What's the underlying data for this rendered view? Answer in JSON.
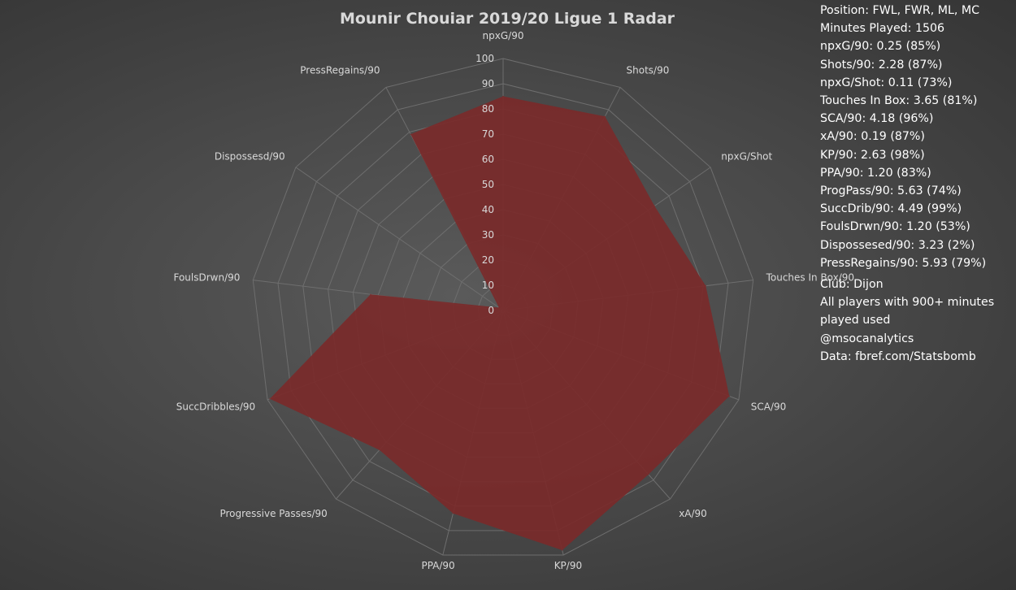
{
  "chart_data": {
    "type": "radar",
    "title": "Mounir Chouiar 2019/20 Ligue 1 Radar",
    "axes": [
      "npxG/90",
      "Shots/90",
      "npxG/Shot",
      "Touches In Box/90",
      "SCA/90",
      "xA/90",
      "KP/90",
      "PPA/90",
      "Progressive Passes/90",
      "SuccDribbles/90",
      "FoulsDrwn/90",
      "Dispossesd/90",
      "PressRegains/90"
    ],
    "series": [
      {
        "values": [
          85,
          87,
          73,
          81,
          96,
          87,
          98,
          83,
          74,
          99,
          53,
          2,
          79
        ],
        "color": "#7a2a2a"
      }
    ],
    "r_range": [
      0,
      100
    ],
    "r_ticks": [
      0,
      10,
      20,
      30,
      40,
      50,
      60,
      70,
      80,
      90,
      100
    ],
    "grid": true,
    "legend": "none"
  },
  "info": {
    "stats": [
      "Position: FWL, FWR, ML, MC",
      "Minutes Played: 1506",
      "npxG/90: 0.25 (85%)",
      "Shots/90: 2.28 (87%)",
      "npxG/Shot: 0.11 (73%)",
      "Touches In Box: 3.65 (81%)",
      "SCA/90: 4.18 (96%)",
      "xA/90: 0.19 (87%)",
      "KP/90: 2.63 (98%)",
      "PPA/90: 1.20 (83%)",
      "ProgPass/90: 5.63 (74%)",
      "SuccDrib/90: 4.49 (99%)",
      "FoulsDrwn/90: 1.20 (53%)",
      "Dispossesed/90: 3.23 (2%)",
      "PressRegains/90: 5.93 (79%)"
    ],
    "notes": [
      "Club: Dijon",
      "All players with 900+ minutes",
      "played used",
      "@msocanalytics",
      "Data: fbref.com/Statsbomb"
    ]
  },
  "colors": {
    "fill": "#7a2a2a",
    "grid": "#6e6e6e",
    "text": "#d9d9d9"
  }
}
